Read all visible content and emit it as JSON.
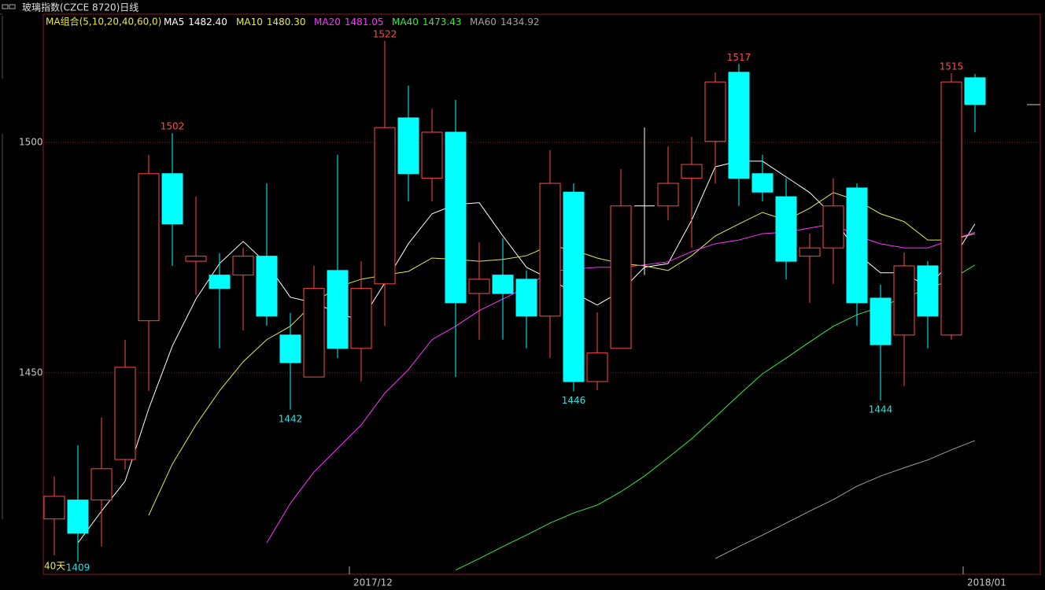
{
  "chart_data": {
    "type": "candlestick",
    "title": "玻璃指数(CZCE 8720)日线",
    "indicator": "MA组合(5,10,20,40,60,0)",
    "period_note": "40天",
    "categories": [
      null,
      null,
      null,
      null,
      null,
      null,
      null,
      null,
      null,
      null,
      null,
      null,
      null,
      "2017/12",
      null,
      null,
      null,
      null,
      null,
      null,
      null,
      null,
      null,
      null,
      null,
      null,
      null,
      null,
      null,
      null,
      null,
      null,
      null,
      null,
      null,
      null,
      null,
      null,
      null,
      "2018/01"
    ],
    "candles": [
      {
        "open": 1418.3,
        "high": 1427.5,
        "low": 1410.4,
        "close": 1423.2
      },
      {
        "open": 1422.4,
        "high": 1434.3,
        "low": 1409,
        "close": 1415.2,
        "low_label": "1409"
      },
      {
        "open": 1422.4,
        "high": 1440.3,
        "low": 1412.3,
        "close": 1429.2
      },
      {
        "open": 1431.2,
        "high": 1457.2,
        "low": 1429.0,
        "close": 1451.2
      },
      {
        "open": 1461.3,
        "high": 1497.3,
        "low": 1446.1,
        "close": 1493.2
      },
      {
        "open": 1493.2,
        "high": 1502,
        "low": 1473.2,
        "close": 1482.3,
        "high_label": "1502"
      },
      {
        "open": 1474.2,
        "high": 1488.2,
        "low": 1466.9,
        "close": 1475.3
      },
      {
        "open": 1471.2,
        "high": 1475.9,
        "low": 1455.3,
        "close": 1468.3
      },
      {
        "open": 1471.2,
        "high": 1477.1,
        "low": 1459.2,
        "close": 1475.3
      },
      {
        "open": 1475.3,
        "high": 1491.1,
        "low": 1460.2,
        "close": 1462.3
      },
      {
        "open": 1458.2,
        "high": 1463.0,
        "low": 1442,
        "close": 1452.2,
        "low_label": "1442"
      },
      {
        "open": 1449.1,
        "high": 1473.2,
        "low": 1449.1,
        "close": 1468.3
      },
      {
        "open": 1472.2,
        "high": 1497.3,
        "low": 1453.2,
        "close": 1455.3
      },
      {
        "open": 1455.3,
        "high": 1474.2,
        "low": 1448.1,
        "close": 1468.3
      },
      {
        "open": 1469.3,
        "high": 1522,
        "low": 1460.2,
        "close": 1503.2,
        "high_label": "1522"
      },
      {
        "open": 1505.3,
        "high": 1512.3,
        "low": 1487.2,
        "close": 1493.2
      },
      {
        "open": 1492.2,
        "high": 1507.3,
        "low": 1487.2,
        "close": 1502.2
      },
      {
        "open": 1502.2,
        "high": 1509.2,
        "low": 1449.1,
        "close": 1465.2
      },
      {
        "open": 1467.2,
        "high": 1478.3,
        "low": 1457.2,
        "close": 1470.3
      },
      {
        "open": 1471.2,
        "high": 1479.2,
        "low": 1457.2,
        "close": 1467.2
      },
      {
        "open": 1470.3,
        "high": 1472.2,
        "low": 1455.3,
        "close": 1462.3
      },
      {
        "open": 1462.3,
        "high": 1498.3,
        "low": 1453.2,
        "close": 1491.1
      },
      {
        "open": 1489.2,
        "high": 1491.1,
        "low": 1446,
        "close": 1448.1,
        "low_label": "1446"
      },
      {
        "open": 1448.1,
        "high": 1463.1,
        "low": 1446.2,
        "close": 1454.3
      },
      {
        "open": 1455.3,
        "high": 1494.2,
        "low": 1455.3,
        "close": 1486.2
      },
      {
        "open": 1486.2,
        "high": 1503.2,
        "low": 1471.2,
        "close": 1486.2
      },
      {
        "open": 1486.2,
        "high": 1499.1,
        "low": 1483.1,
        "close": 1491.1
      },
      {
        "open": 1492.2,
        "high": 1501.2,
        "low": 1477.1,
        "close": 1495.2
      },
      {
        "open": 1500.2,
        "high": 1515.2,
        "low": 1491.1,
        "close": 1513.1
      },
      {
        "open": 1515.2,
        "high": 1517,
        "low": 1486.2,
        "close": 1492.2,
        "high_label": "1517"
      },
      {
        "open": 1493.2,
        "high": 1497.3,
        "low": 1487.2,
        "close": 1489.2
      },
      {
        "open": 1488.2,
        "high": 1492.2,
        "low": 1470.3,
        "close": 1474.2
      },
      {
        "open": 1475.3,
        "high": 1480.2,
        "low": 1465.2,
        "close": 1477.1
      },
      {
        "open": 1477.1,
        "high": 1492.2,
        "low": 1469.3,
        "close": 1486.2
      },
      {
        "open": 1490.1,
        "high": 1491.1,
        "low": 1460.2,
        "close": 1465.2
      },
      {
        "open": 1466.2,
        "high": 1469.1,
        "low": 1444,
        "close": 1456.1,
        "low_label": "1444"
      },
      {
        "open": 1458.2,
        "high": 1476.1,
        "low": 1447.1,
        "close": 1473.2
      },
      {
        "open": 1473.2,
        "high": 1474.2,
        "low": 1455.3,
        "close": 1462.3
      },
      {
        "open": 1458.2,
        "high": 1515,
        "low": 1457.2,
        "close": 1513.1,
        "high_label": "1515"
      },
      {
        "open": 1514.0,
        "high": 1514.8,
        "low": 1502.2,
        "close": 1508.2
      }
    ],
    "series": [
      {
        "name": "MA5",
        "legend_value": "1482.40",
        "color": "#ffffff",
        "values": [
          null,
          1413.1,
          1420.0,
          1426.5,
          1442.2,
          1455.8,
          1466.0,
          1473.7,
          1478.5,
          1473.7,
          1466.4,
          1465.2,
          1463.0,
          1461.3,
          1469.5,
          1478.0,
          1484.5,
          1486.5,
          1486.9,
          1479.7,
          1472.9,
          1470.3,
          1467.4,
          1464.7,
          1467.7,
          1472.9,
          1473.7,
          1483.1,
          1494.7,
          1495.9,
          1495.9,
          1492.5,
          1489.1,
          1484.0,
          1475.9,
          1471.7,
          1471.7,
          1468.6,
          1474.2,
          1482.3
        ]
      },
      {
        "name": "MA10",
        "legend_value": "1480.30",
        "color": "#e8e84a",
        "values": [
          null,
          null,
          null,
          null,
          1419.1,
          1430.2,
          1438.7,
          1446.1,
          1452.4,
          1457.2,
          1460.1,
          1465.2,
          1468.6,
          1470.3,
          1471.2,
          1472.0,
          1474.9,
          1474.6,
          1474.2,
          1474.6,
          1475.4,
          1477.6,
          1476.6,
          1474.9,
          1473.7,
          1473.2,
          1472.2,
          1475.4,
          1479.7,
          1482.3,
          1484.8,
          1483.1,
          1485.7,
          1489.1,
          1487.4,
          1484.5,
          1482.8,
          1478.8,
          1478.8,
          1480.2
        ]
      },
      {
        "name": "MA20",
        "legend_value": "1481.05",
        "color": "#ff33ff",
        "values": [
          null,
          null,
          null,
          null,
          null,
          null,
          null,
          null,
          null,
          1413.1,
          1421.7,
          1428.5,
          1433.6,
          1438.7,
          1445.6,
          1450.7,
          1457.2,
          1460.1,
          1463.5,
          1466.0,
          1468.6,
          1472.0,
          1472.5,
          1472.9,
          1472.9,
          1473.4,
          1474.1,
          1476.3,
          1478.0,
          1478.8,
          1480.2,
          1480.5,
          1481.4,
          1482.3,
          1479.7,
          1478.0,
          1477.1,
          1477.1,
          1478.8,
          1480.5
        ]
      },
      {
        "name": "MA40",
        "legend_value": "1473.43",
        "color": "#33ee33",
        "values": [
          null,
          null,
          null,
          null,
          null,
          null,
          null,
          null,
          null,
          null,
          null,
          null,
          null,
          null,
          null,
          null,
          null,
          1407.2,
          1409.7,
          1412.3,
          1414.8,
          1417.4,
          1419.6,
          1421.3,
          1424.2,
          1427.6,
          1431.6,
          1435.7,
          1440.4,
          1445.2,
          1449.8,
          1453.2,
          1456.7,
          1460.1,
          1462.6,
          1464.3,
          1466.4,
          1468.1,
          1470.3,
          1473.4
        ]
      },
      {
        "name": "MA60",
        "legend_value": "1434.92",
        "color": "#a0a0a0",
        "values": [
          null,
          null,
          null,
          null,
          null,
          null,
          null,
          null,
          null,
          null,
          null,
          null,
          null,
          null,
          null,
          null,
          null,
          null,
          null,
          null,
          null,
          null,
          null,
          null,
          null,
          null,
          null,
          null,
          1409.7,
          1412.3,
          1414.8,
          1417.4,
          1420.0,
          1422.5,
          1425.4,
          1427.6,
          1429.4,
          1431.1,
          1433.3,
          1435.3
        ]
      }
    ],
    "ylim": [
      1406.3,
      1527.8
    ],
    "yticks": [
      1450,
      1500
    ],
    "grid": true,
    "up_color": "#ff4a4a",
    "down_color": "#00ffff",
    "flat_color": "#ffffff"
  }
}
